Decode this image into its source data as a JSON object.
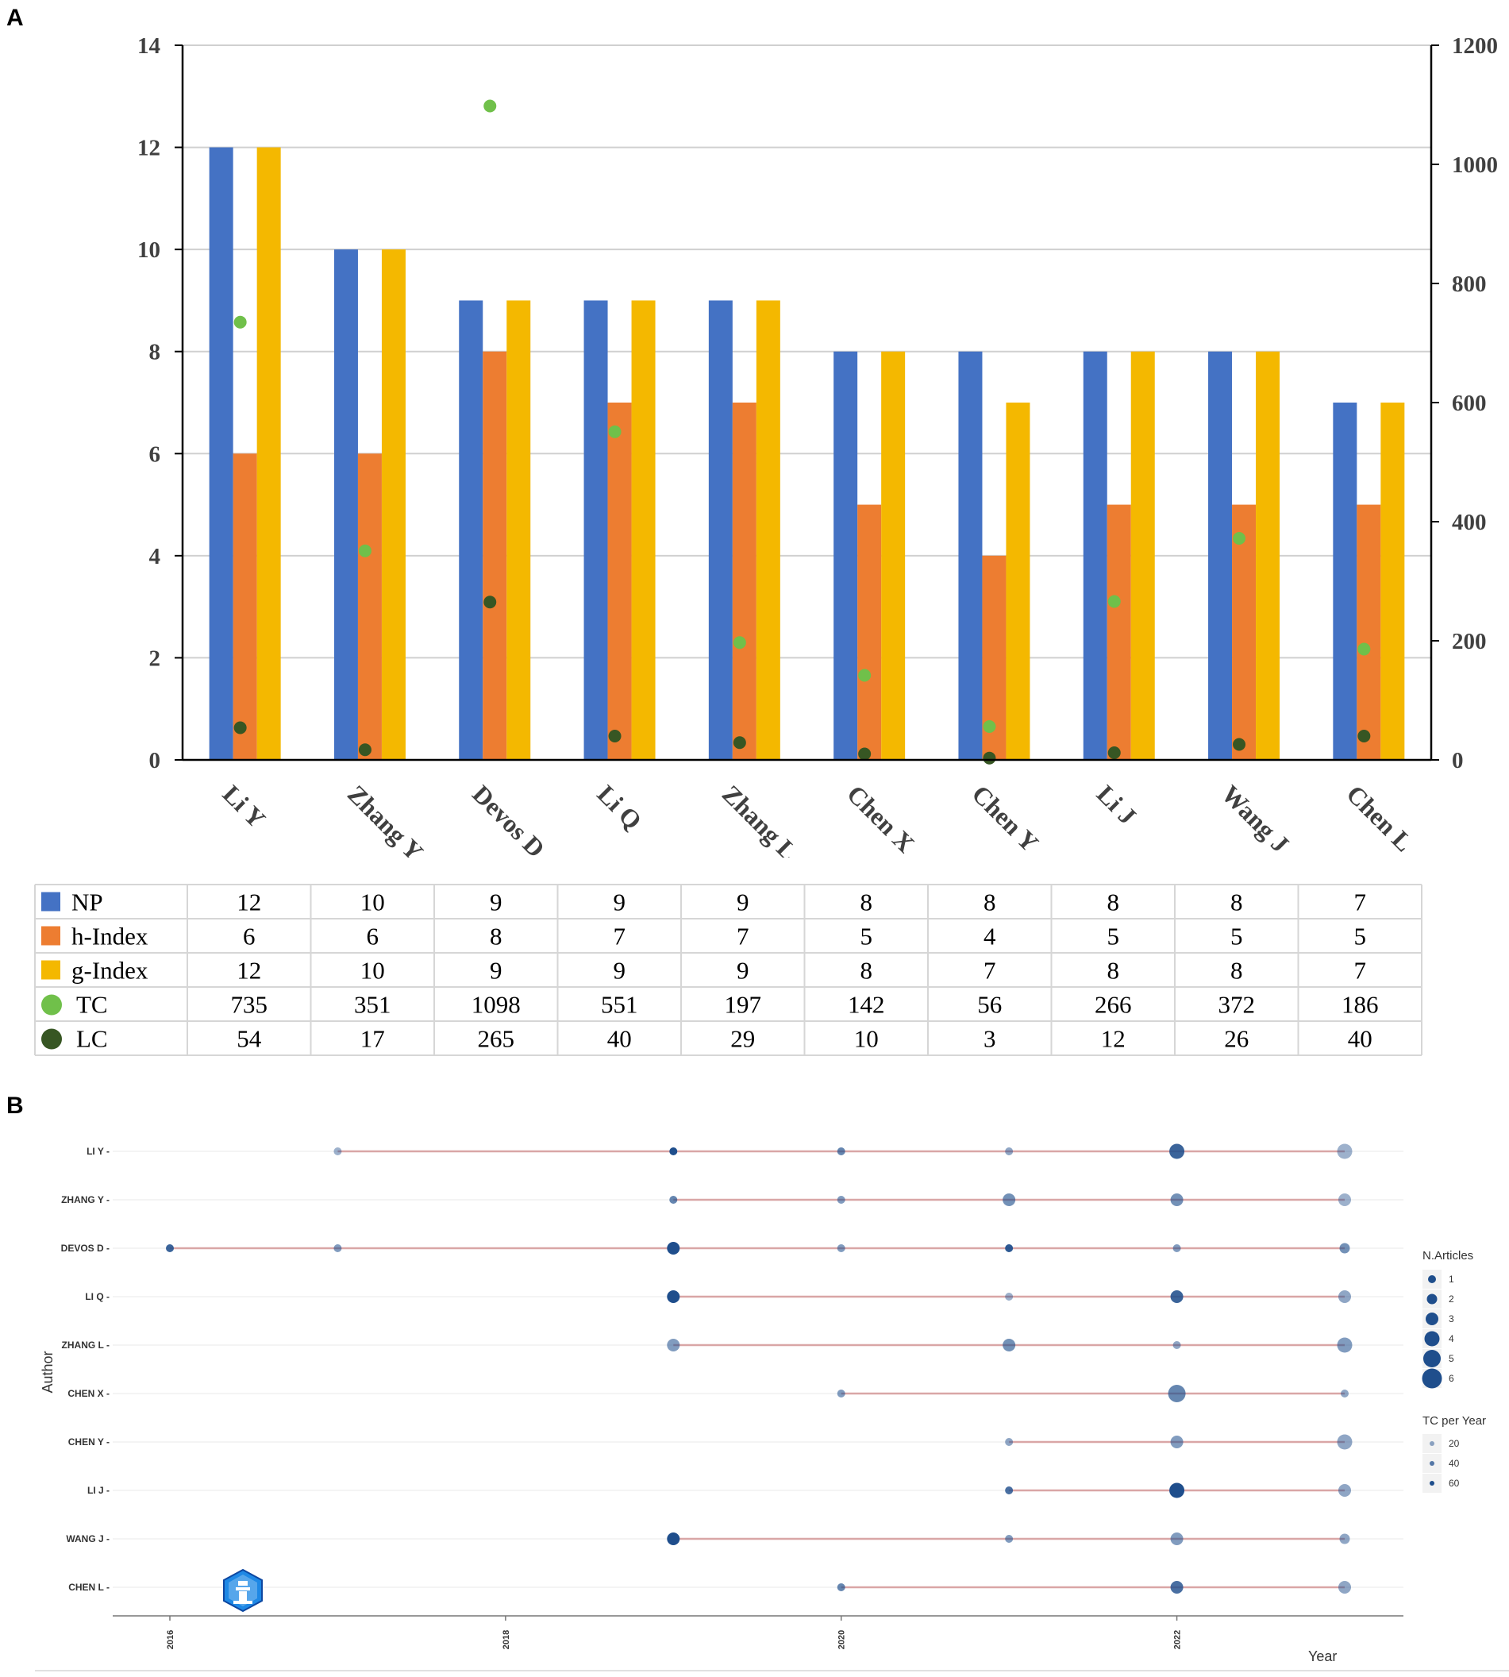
{
  "panel_a_label": "A",
  "panel_b_label": "B",
  "chart_data": [
    {
      "type": "bar",
      "categories": [
        "Li Y",
        "Zhang Y",
        "Devos D",
        "Li Q",
        "Zhang L",
        "Chen X",
        "Chen Y",
        "Li J",
        "Wang J",
        "Chen L"
      ],
      "series": [
        {
          "name": "NP",
          "values": [
            12,
            10,
            9,
            9,
            9,
            8,
            8,
            8,
            8,
            7
          ],
          "color": "#4472C4",
          "axis": "left",
          "kind": "bar"
        },
        {
          "name": "h-Index",
          "values": [
            6,
            6,
            8,
            7,
            7,
            5,
            4,
            5,
            5,
            5
          ],
          "color": "#ED7D31",
          "axis": "left",
          "kind": "bar"
        },
        {
          "name": "g-Index",
          "values": [
            12,
            10,
            9,
            9,
            9,
            8,
            7,
            8,
            8,
            7
          ],
          "color": "#F4B800",
          "axis": "left",
          "kind": "bar"
        },
        {
          "name": "TC",
          "values": [
            735,
            351,
            1098,
            551,
            197,
            142,
            56,
            266,
            372,
            186
          ],
          "color": "#70C04A",
          "axis": "right",
          "kind": "scatter"
        },
        {
          "name": "LC",
          "values": [
            54,
            17,
            265,
            40,
            29,
            10,
            3,
            12,
            26,
            40
          ],
          "color": "#375623",
          "axis": "right",
          "kind": "scatter"
        }
      ],
      "ylim_left": [
        0,
        14
      ],
      "yticks_left": [
        "0",
        "2",
        "4",
        "6",
        "8",
        "10",
        "12",
        "14"
      ],
      "ylim_right": [
        0,
        1200
      ],
      "yticks_right": [
        "0",
        "200",
        "400",
        "600",
        "800",
        "1000",
        "1200"
      ],
      "grid": true,
      "legend": "data-table-below"
    },
    {
      "type": "scatter",
      "authors": [
        "LI Y",
        "ZHANG Y",
        "DEVOS D",
        "LI Q",
        "ZHANG L",
        "CHEN X",
        "CHEN Y",
        "LI J",
        "WANG J",
        "CHEN L"
      ],
      "ylabel": "Author",
      "xlabel": "Year",
      "xlim": [
        2016,
        2023
      ],
      "xticks": [
        "2016",
        "2018",
        "2020",
        "2022"
      ],
      "points": [
        {
          "author": "LI Y",
          "year": 2017,
          "articles": 1,
          "tc": 15
        },
        {
          "author": "LI Y",
          "year": 2019,
          "articles": 1,
          "tc": 65
        },
        {
          "author": "LI Y",
          "year": 2020,
          "articles": 1,
          "tc": 35
        },
        {
          "author": "LI Y",
          "year": 2021,
          "articles": 1,
          "tc": 20
        },
        {
          "author": "LI Y",
          "year": 2022,
          "articles": 4,
          "tc": 50
        },
        {
          "author": "LI Y",
          "year": 2023,
          "articles": 4,
          "tc": 15
        },
        {
          "author": "ZHANG Y",
          "year": 2019,
          "articles": 1,
          "tc": 35
        },
        {
          "author": "ZHANG Y",
          "year": 2020,
          "articles": 1,
          "tc": 25
        },
        {
          "author": "ZHANG Y",
          "year": 2021,
          "articles": 3,
          "tc": 30
        },
        {
          "author": "ZHANG Y",
          "year": 2022,
          "articles": 3,
          "tc": 30
        },
        {
          "author": "ZHANG Y",
          "year": 2023,
          "articles": 3,
          "tc": 15
        },
        {
          "author": "DEVOS D",
          "year": 2016,
          "articles": 1,
          "tc": 50
        },
        {
          "author": "DEVOS D",
          "year": 2017,
          "articles": 1,
          "tc": 25
        },
        {
          "author": "DEVOS D",
          "year": 2019,
          "articles": 3,
          "tc": 60
        },
        {
          "author": "DEVOS D",
          "year": 2020,
          "articles": 1,
          "tc": 25
        },
        {
          "author": "DEVOS D",
          "year": 2021,
          "articles": 1,
          "tc": 55
        },
        {
          "author": "DEVOS D",
          "year": 2022,
          "articles": 1,
          "tc": 25
        },
        {
          "author": "DEVOS D",
          "year": 2023,
          "articles": 2,
          "tc": 30
        },
        {
          "author": "LI Q",
          "year": 2019,
          "articles": 3,
          "tc": 70
        },
        {
          "author": "LI Q",
          "year": 2021,
          "articles": 1,
          "tc": 15
        },
        {
          "author": "LI Q",
          "year": 2022,
          "articles": 3,
          "tc": 50
        },
        {
          "author": "LI Q",
          "year": 2023,
          "articles": 3,
          "tc": 20
        },
        {
          "author": "ZHANG L",
          "year": 2019,
          "articles": 3,
          "tc": 25
        },
        {
          "author": "ZHANG L",
          "year": 2021,
          "articles": 3,
          "tc": 30
        },
        {
          "author": "ZHANG L",
          "year": 2022,
          "articles": 1,
          "tc": 20
        },
        {
          "author": "ZHANG L",
          "year": 2023,
          "articles": 4,
          "tc": 25
        },
        {
          "author": "CHEN X",
          "year": 2020,
          "articles": 1,
          "tc": 25
        },
        {
          "author": "CHEN X",
          "year": 2022,
          "articles": 5,
          "tc": 35
        },
        {
          "author": "CHEN X",
          "year": 2023,
          "articles": 1,
          "tc": 20
        },
        {
          "author": "CHEN Y",
          "year": 2021,
          "articles": 1,
          "tc": 20
        },
        {
          "author": "CHEN Y",
          "year": 2022,
          "articles": 3,
          "tc": 25
        },
        {
          "author": "CHEN Y",
          "year": 2023,
          "articles": 4,
          "tc": 20
        },
        {
          "author": "LI J",
          "year": 2021,
          "articles": 1,
          "tc": 45
        },
        {
          "author": "LI J",
          "year": 2022,
          "articles": 4,
          "tc": 65
        },
        {
          "author": "LI J",
          "year": 2023,
          "articles": 3,
          "tc": 20
        },
        {
          "author": "WANG J",
          "year": 2019,
          "articles": 3,
          "tc": 60
        },
        {
          "author": "WANG J",
          "year": 2021,
          "articles": 1,
          "tc": 25
        },
        {
          "author": "WANG J",
          "year": 2022,
          "articles": 3,
          "tc": 25
        },
        {
          "author": "WANG J",
          "year": 2023,
          "articles": 2,
          "tc": 20
        },
        {
          "author": "CHEN L",
          "year": 2020,
          "articles": 1,
          "tc": 35
        },
        {
          "author": "CHEN L",
          "year": 2022,
          "articles": 3,
          "tc": 45
        },
        {
          "author": "CHEN L",
          "year": 2023,
          "articles": 3,
          "tc": 20
        }
      ],
      "ranges": [
        {
          "author": "LI Y",
          "start": 2017,
          "end": 2023
        },
        {
          "author": "ZHANG Y",
          "start": 2019,
          "end": 2023
        },
        {
          "author": "DEVOS D",
          "start": 2016,
          "end": 2023
        },
        {
          "author": "LI Q",
          "start": 2019,
          "end": 2023
        },
        {
          "author": "ZHANG L",
          "start": 2019,
          "end": 2023
        },
        {
          "author": "CHEN X",
          "start": 2020,
          "end": 2023
        },
        {
          "author": "CHEN Y",
          "start": 2021,
          "end": 2023
        },
        {
          "author": "LI J",
          "start": 2021,
          "end": 2023
        },
        {
          "author": "WANG J",
          "start": 2019,
          "end": 2023
        },
        {
          "author": "CHEN L",
          "start": 2020,
          "end": 2023
        }
      ],
      "line_color": "#D9A6A6",
      "point_color": "#1F4E8C",
      "legend": {
        "size_title": "N.Articles",
        "size_values": [
          "1",
          "2",
          "3",
          "4",
          "5",
          "6"
        ],
        "alpha_title": "TC per Year",
        "alpha_values": [
          "20",
          "40",
          "60"
        ],
        "placement": "right"
      }
    }
  ]
}
